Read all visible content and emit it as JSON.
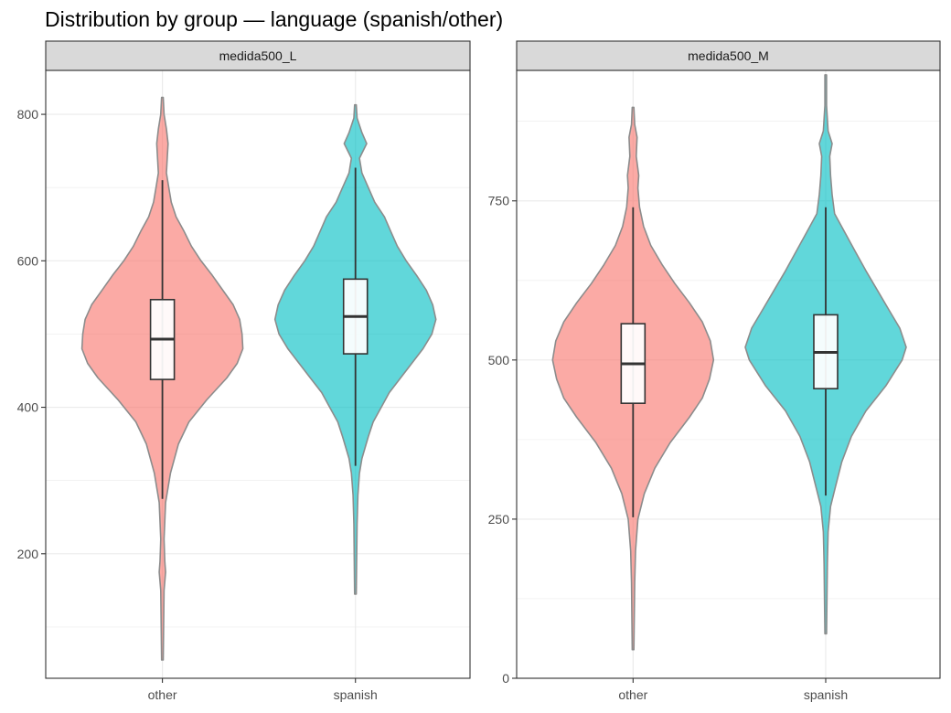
{
  "chart_data": {
    "type": "violin",
    "title": "Distribution by group — language (spanish/other)",
    "categories": [
      "other",
      "spanish"
    ],
    "colors": {
      "other": "#f8766d",
      "spanish": "#00bfc4"
    },
    "grid": true,
    "legend": "none",
    "panels": [
      {
        "strip": "medida500_L",
        "ylim": [
          30,
          860
        ],
        "yticks": [
          200,
          400,
          600,
          800
        ],
        "ytick_labels": [
          "200",
          "400",
          "600",
          "800"
        ],
        "groups": [
          {
            "name": "other",
            "box": {
              "min": 275,
              "q1": 438,
              "median": 493,
              "q3": 547,
              "max": 710
            },
            "violin_range": [
              55,
              823
            ],
            "density": [
              [
                55,
                0.01
              ],
              [
                150,
                0.02
              ],
              [
                175,
                0.04
              ],
              [
                190,
                0.03
              ],
              [
                220,
                0.02
              ],
              [
                270,
                0.04
              ],
              [
                310,
                0.1
              ],
              [
                350,
                0.2
              ],
              [
                380,
                0.33
              ],
              [
                410,
                0.55
              ],
              [
                440,
                0.8
              ],
              [
                460,
                0.93
              ],
              [
                480,
                1.0
              ],
              [
                500,
                0.99
              ],
              [
                520,
                0.96
              ],
              [
                540,
                0.88
              ],
              [
                560,
                0.75
              ],
              [
                580,
                0.62
              ],
              [
                600,
                0.48
              ],
              [
                620,
                0.36
              ],
              [
                640,
                0.27
              ],
              [
                660,
                0.17
              ],
              [
                680,
                0.11
              ],
              [
                700,
                0.08
              ],
              [
                720,
                0.05
              ],
              [
                740,
                0.06
              ],
              [
                760,
                0.07
              ],
              [
                780,
                0.05
              ],
              [
                800,
                0.02
              ],
              [
                823,
                0.01
              ]
            ]
          },
          {
            "name": "spanish",
            "box": {
              "min": 320,
              "q1": 473,
              "median": 524,
              "q3": 575,
              "max": 727
            },
            "violin_range": [
              145,
              813
            ],
            "density": [
              [
                145,
                0.01
              ],
              [
                240,
                0.02
              ],
              [
                280,
                0.03
              ],
              [
                310,
                0.05
              ],
              [
                330,
                0.08
              ],
              [
                360,
                0.16
              ],
              [
                380,
                0.22
              ],
              [
                400,
                0.32
              ],
              [
                420,
                0.42
              ],
              [
                440,
                0.56
              ],
              [
                460,
                0.7
              ],
              [
                480,
                0.84
              ],
              [
                500,
                0.95
              ],
              [
                520,
                1.0
              ],
              [
                540,
                0.96
              ],
              [
                560,
                0.88
              ],
              [
                580,
                0.76
              ],
              [
                600,
                0.63
              ],
              [
                620,
                0.52
              ],
              [
                640,
                0.44
              ],
              [
                660,
                0.36
              ],
              [
                680,
                0.24
              ],
              [
                700,
                0.16
              ],
              [
                720,
                0.08
              ],
              [
                740,
                0.05
              ],
              [
                760,
                0.14
              ],
              [
                775,
                0.08
              ],
              [
                795,
                0.02
              ],
              [
                813,
                0.01
              ]
            ]
          }
        ]
      },
      {
        "strip": "medida500_M",
        "ylim": [
          0,
          955
        ],
        "yticks": [
          0,
          250,
          500,
          750
        ],
        "ytick_labels": [
          "0",
          "250",
          "500",
          "750"
        ],
        "groups": [
          {
            "name": "other",
            "box": {
              "min": 253,
              "q1": 432,
              "median": 494,
              "q3": 557,
              "max": 740
            },
            "violin_range": [
              45,
              897
            ],
            "density": [
              [
                45,
                0.01
              ],
              [
                150,
                0.02
              ],
              [
                200,
                0.03
              ],
              [
                250,
                0.06
              ],
              [
                290,
                0.14
              ],
              [
                330,
                0.27
              ],
              [
                370,
                0.46
              ],
              [
                410,
                0.7
              ],
              [
                440,
                0.86
              ],
              [
                470,
                0.95
              ],
              [
                500,
                1.0
              ],
              [
                530,
                0.96
              ],
              [
                560,
                0.86
              ],
              [
                590,
                0.7
              ],
              [
                620,
                0.52
              ],
              [
                650,
                0.36
              ],
              [
                680,
                0.22
              ],
              [
                710,
                0.13
              ],
              [
                740,
                0.08
              ],
              [
                770,
                0.06
              ],
              [
                790,
                0.07
              ],
              [
                820,
                0.04
              ],
              [
                850,
                0.05
              ],
              [
                870,
                0.02
              ],
              [
                897,
                0.01
              ]
            ]
          },
          {
            "name": "spanish",
            "box": {
              "min": 287,
              "q1": 455,
              "median": 512,
              "q3": 571,
              "max": 740
            },
            "violin_range": [
              70,
              948
            ],
            "density": [
              [
                70,
                0.01
              ],
              [
                180,
                0.02
              ],
              [
                230,
                0.03
              ],
              [
                270,
                0.06
              ],
              [
                300,
                0.12
              ],
              [
                340,
                0.2
              ],
              [
                380,
                0.32
              ],
              [
                420,
                0.5
              ],
              [
                460,
                0.75
              ],
              [
                500,
                0.95
              ],
              [
                520,
                1.0
              ],
              [
                550,
                0.92
              ],
              [
                580,
                0.78
              ],
              [
                610,
                0.64
              ],
              [
                640,
                0.5
              ],
              [
                670,
                0.37
              ],
              [
                700,
                0.24
              ],
              [
                730,
                0.11
              ],
              [
                760,
                0.08
              ],
              [
                790,
                0.06
              ],
              [
                820,
                0.05
              ],
              [
                840,
                0.08
              ],
              [
                860,
                0.03
              ],
              [
                900,
                0.01
              ],
              [
                948,
                0.01
              ]
            ]
          }
        ]
      }
    ]
  }
}
